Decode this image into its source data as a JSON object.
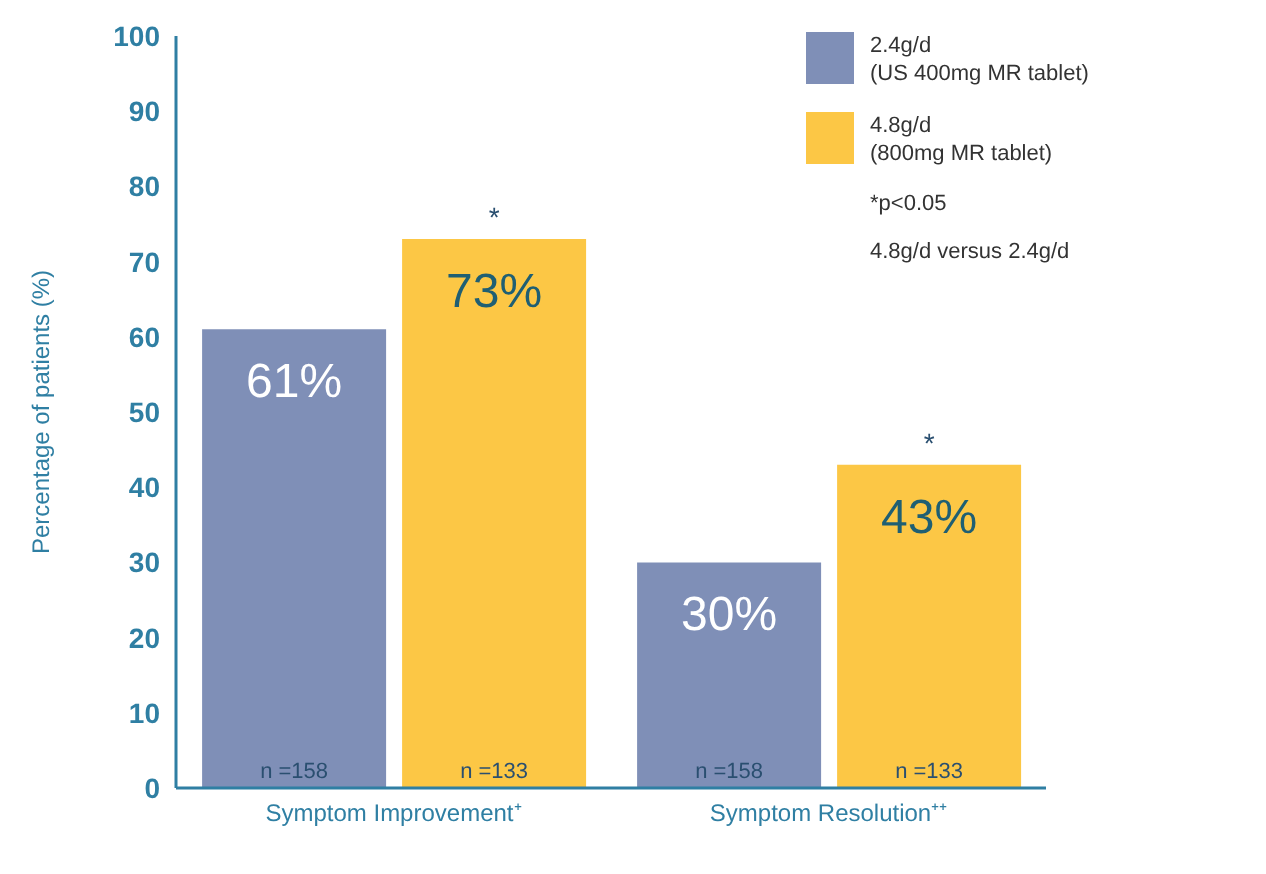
{
  "chart_data": {
    "type": "bar",
    "ylabel": "Percentage of patients (%)",
    "categories": [
      "Symptom Improvement⁺",
      "Symptom Resolution⁺⁺"
    ],
    "series": [
      {
        "name": "2.4g/d\n(US 400mg MR tablet)",
        "color": "#7f8fb7",
        "values": [
          61,
          30
        ],
        "value_labels": [
          "61%",
          "30%"
        ]
      },
      {
        "name": "4.8g/d\n(800mg MR tablet)",
        "color": "#fcc745",
        "values": [
          73,
          43
        ],
        "value_labels": [
          "73%",
          "43%"
        ]
      }
    ],
    "ylim": [
      0,
      100
    ],
    "yticks": [
      0,
      10,
      20,
      30,
      40,
      50,
      60,
      70,
      80,
      90,
      100
    ],
    "legend": "top right",
    "annotations": [
      "n =158",
      "n =133",
      "n =158",
      "n =133",
      "*",
      "*",
      "*p<0.05",
      "4.8g/d versus 2.4g/d"
    ]
  }
}
